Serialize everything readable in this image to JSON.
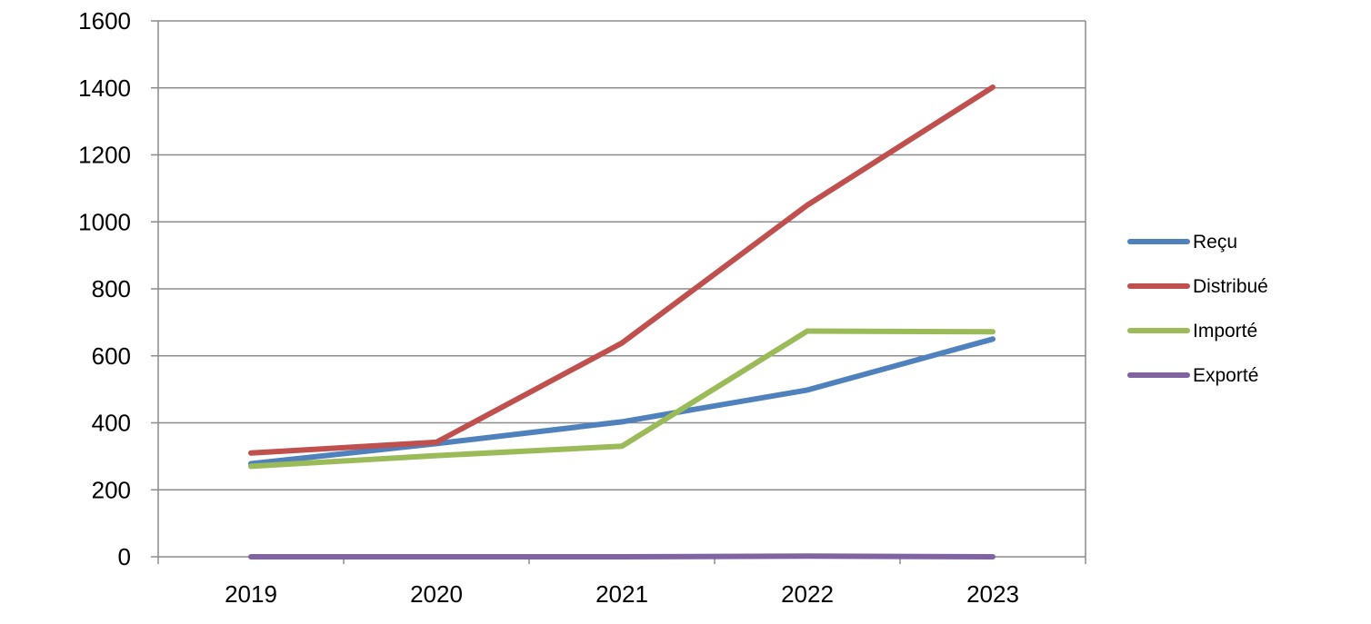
{
  "chart_data": {
    "type": "line",
    "title": "",
    "xlabel": "",
    "ylabel": "",
    "categories": [
      "2019",
      "2020",
      "2021",
      "2022",
      "2023"
    ],
    "ylim": [
      0,
      1600
    ],
    "yticks": [
      "0",
      "200",
      "400",
      "600",
      "800",
      "1000",
      "1200",
      "1400",
      "1600"
    ],
    "grid": "horizontal",
    "legend_position": "right",
    "series": [
      {
        "name": "Reçu",
        "color": "#4F81BD",
        "values": [
          278,
          338,
          403,
          498,
          650
        ]
      },
      {
        "name": "Distribué",
        "color": "#C0504D",
        "values": [
          310,
          342,
          638,
          1050,
          1402
        ]
      },
      {
        "name": "Importé",
        "color": "#9BBB59",
        "values": [
          270,
          302,
          330,
          674,
          672
        ]
      },
      {
        "name": "Exporté",
        "color": "#8064A2",
        "values": [
          0,
          0,
          0,
          2,
          0
        ]
      }
    ]
  }
}
